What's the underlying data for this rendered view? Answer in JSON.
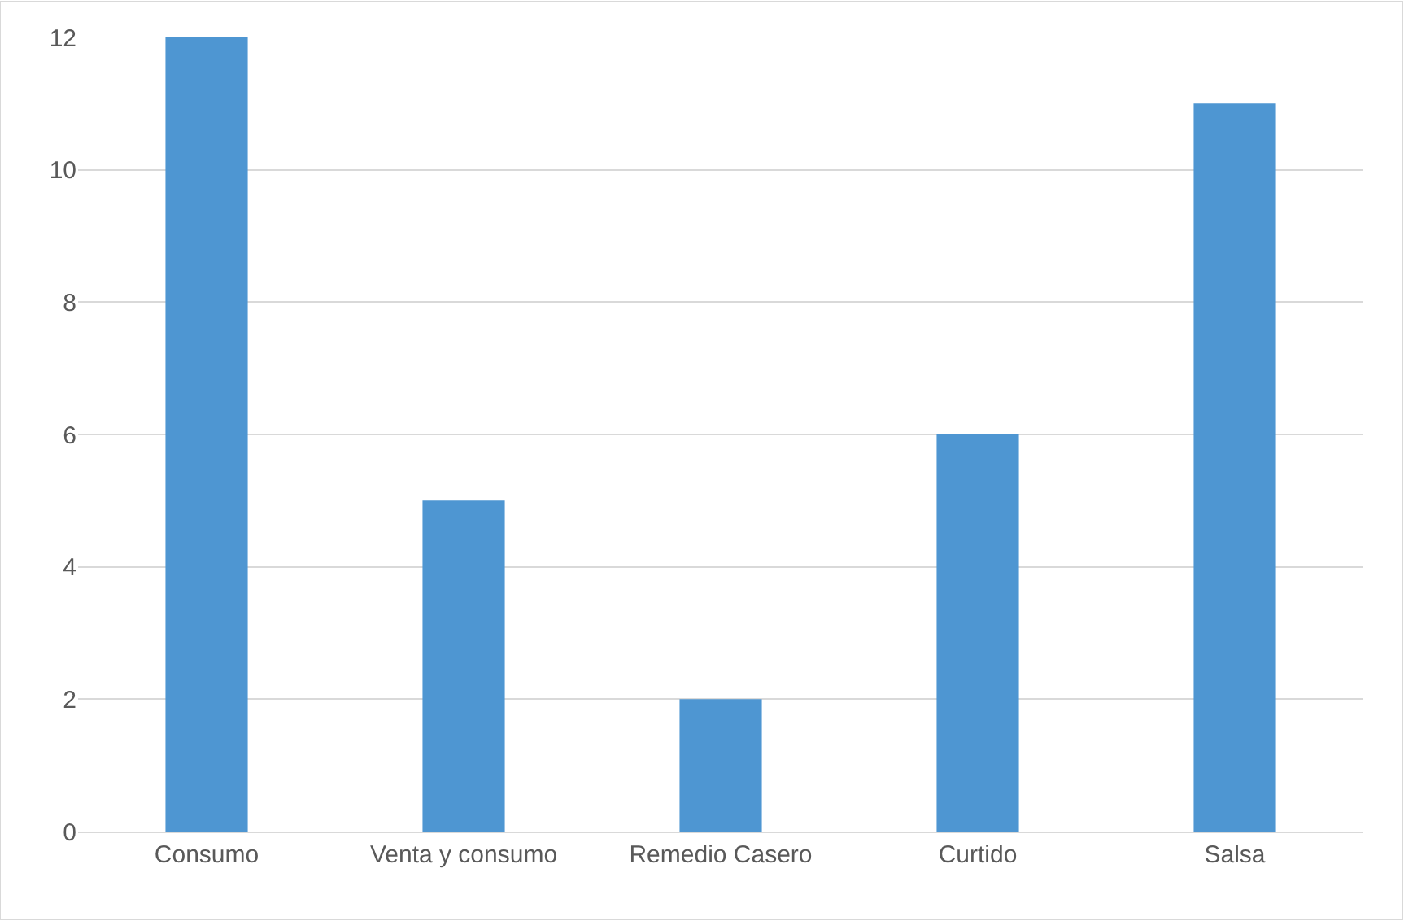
{
  "chart_data": {
    "type": "bar",
    "categories": [
      "Consumo",
      "Venta y consumo",
      "Remedio Casero",
      "Curtido",
      "Salsa"
    ],
    "values": [
      12,
      5,
      2,
      6,
      11
    ],
    "color": "#4e96d2",
    "ylim": [
      0,
      12
    ],
    "yticks": [
      0,
      2,
      4,
      6,
      8,
      10,
      12
    ],
    "grid": "y"
  }
}
